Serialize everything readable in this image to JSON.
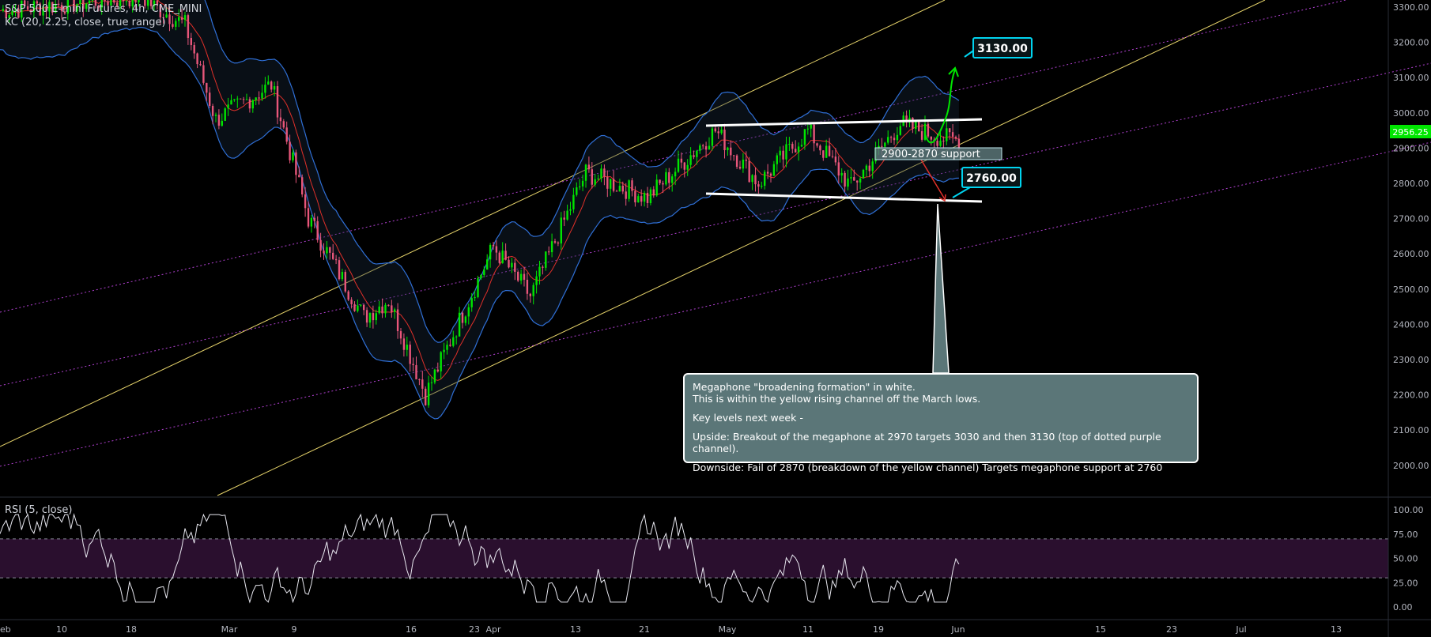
{
  "header": {
    "symbol": "S&P 500 E-mini Futures, 4h, CME_MINI",
    "indicator": "KC (20, 2.25, close, true range)",
    "rsi_label": "RSI (5, close)"
  },
  "price_tag": "2956.25",
  "annotations": {
    "target_up": "3130.00",
    "target_down": "2760.00",
    "support_zone": "2900-2870 support",
    "note": {
      "line1": "Megaphone \"broadening formation\" in white.",
      "line2": "This is within the yellow rising channel off the March lows.",
      "line3": "Key levels next week -",
      "line4": "Upside: Breakout of the megaphone at 2970 targets 3030 and then 3130 (top of dotted purple channel).",
      "line5": "Downside: Fail of 2870 (breakdown of the yellow channel) Targets megaphone support at 2760"
    }
  },
  "colors": {
    "background": "#000000",
    "bull": "#00e600",
    "bear": "#e8567a",
    "keltner": "#2f6fd6",
    "keltner_mid": "#e0302a",
    "yellow_channel": "#e6d36a",
    "purple_channel": "#b040d0",
    "megaphone": "#ffffff",
    "callout": "#00d4f0",
    "rsi_band": "#2a0f2e"
  },
  "chart_data": [
    {
      "type": "candlestick",
      "y_axis_ticks": [
        "3300.00",
        "3200.00",
        "3100.00",
        "3000.00",
        "2900.00",
        "2800.00",
        "2700.00",
        "2600.00",
        "2500.00",
        "2400.00",
        "2300.00",
        "2200.00",
        "2100.00",
        "2000.00"
      ],
      "x_axis_ticks": [
        "eb",
        "10",
        "18",
        "Mar",
        "9",
        "16",
        "23",
        "Apr",
        "13",
        "21",
        "May",
        "11",
        "19",
        "Jun",
        "15",
        "23",
        "Jul",
        "13"
      ],
      "ylim": [
        1940,
        3330
      ],
      "last_price": 2956.25,
      "swing_points": [
        {
          "t": 0,
          "p": 3290
        },
        {
          "t": 45,
          "p": 3330
        },
        {
          "t": 60,
          "p": 3250
        },
        {
          "t": 70,
          "p": 2980
        },
        {
          "t": 88,
          "p": 3080
        },
        {
          "t": 100,
          "p": 2700
        },
        {
          "t": 118,
          "p": 2420
        },
        {
          "t": 126,
          "p": 2470
        },
        {
          "t": 138,
          "p": 2200
        },
        {
          "t": 160,
          "p": 2620
        },
        {
          "t": 172,
          "p": 2480
        },
        {
          "t": 190,
          "p": 2830
        },
        {
          "t": 210,
          "p": 2760
        },
        {
          "t": 232,
          "p": 2950
        },
        {
          "t": 246,
          "p": 2800
        },
        {
          "t": 262,
          "p": 2950
        },
        {
          "t": 276,
          "p": 2790
        },
        {
          "t": 292,
          "p": 2970
        },
        {
          "t": 305,
          "p": 2930
        }
      ],
      "support_zone": [
        2870,
        2900
      ],
      "targets": [
        3130,
        2760
      ]
    },
    {
      "type": "line",
      "title": "RSI (5, close)",
      "y_axis_ticks": [
        "100.00",
        "75.00",
        "50.00",
        "25.00",
        "0.00"
      ],
      "ylim": [
        0,
        100
      ],
      "band": [
        30,
        70
      ]
    }
  ]
}
